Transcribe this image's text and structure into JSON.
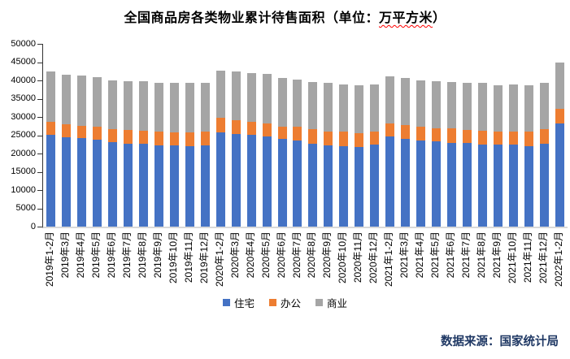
{
  "title": {
    "prefix": "全国商品房各类物业累计待售面积（单位：",
    "highlight": "万平方米",
    "suffix": "）"
  },
  "source_note": "数据来源：国家统计局",
  "legend": [
    {
      "label": "住宅",
      "color": "#4472c4"
    },
    {
      "label": "办公",
      "color": "#ed7d31"
    },
    {
      "label": "商业",
      "color": "#a5a5a5"
    }
  ],
  "y_axis": {
    "min": 0,
    "max": 50000,
    "step": 5000,
    "tick_labels": [
      0,
      5000,
      10000,
      15000,
      20000,
      25000,
      30000,
      35000,
      40000,
      45000,
      50000
    ]
  },
  "colors": {
    "residential": "#4472c4",
    "office": "#ed7d31",
    "commercial": "#a5a5a5",
    "axis_line": "#333333",
    "baseline": "#d9d9d9",
    "source_text": "#1f3864",
    "spellcheck_underline": "#ff0000"
  },
  "chart_data": {
    "type": "bar",
    "stacked": true,
    "title": "全国商品房各类物业累计待售面积（单位：万平方米）",
    "xlabel": "",
    "ylabel": "",
    "ylim": [
      0,
      50000
    ],
    "grid": false,
    "legend_position": "bottom",
    "categories": [
      "2019年1-2月",
      "2019年3月",
      "2019年4月",
      "2019年5月",
      "2019年6月",
      "2019年7月",
      "2019年8月",
      "2019年9月",
      "2019年10月",
      "2019年11月",
      "2019年12月",
      "2020年1-2月",
      "2020年3月",
      "2020年4月",
      "2020年5月",
      "2020年6月",
      "2020年7月",
      "2020年8月",
      "2020年9月",
      "2020年10月",
      "2020年11月",
      "2020年12月",
      "2021年1-2月",
      "2021年3月",
      "2021年4月",
      "2021年5月",
      "2021年6月",
      "2021年7月",
      "2021年8月",
      "2021年9月",
      "2021年10月",
      "2021年11月",
      "2021年12月",
      "2022年1-2月"
    ],
    "series": [
      {
        "name": "住宅",
        "color": "#4472c4",
        "values": [
          25200,
          24500,
          24300,
          23700,
          23200,
          22650,
          22650,
          22300,
          22200,
          22000,
          22300,
          25750,
          25400,
          25100,
          24650,
          23900,
          23500,
          22600,
          22200,
          21950,
          21800,
          22350,
          24600,
          24000,
          23600,
          23300,
          22950,
          22800,
          22550,
          22350,
          22350,
          22100,
          22750,
          28300
        ]
      },
      {
        "name": "办公",
        "color": "#ed7d31",
        "values": [
          3550,
          3500,
          3350,
          3550,
          3550,
          3850,
          3650,
          3700,
          3550,
          3750,
          3700,
          3950,
          3700,
          3500,
          3500,
          3500,
          3750,
          4000,
          3900,
          3950,
          3750,
          3650,
          3600,
          3800,
          3800,
          3550,
          3900,
          3700,
          3700,
          3700,
          3700,
          3800,
          3900,
          3950
        ]
      },
      {
        "name": "商业",
        "color": "#a5a5a5",
        "values": [
          13700,
          13650,
          13750,
          13700,
          13350,
          13350,
          13550,
          13400,
          13500,
          13500,
          13400,
          13000,
          13350,
          13500,
          13550,
          13350,
          13000,
          13050,
          13150,
          13000,
          13200,
          12950,
          13000,
          12800,
          12700,
          13000,
          12750,
          12950,
          13050,
          12700,
          12900,
          12850,
          12700,
          12550
        ]
      }
    ]
  }
}
